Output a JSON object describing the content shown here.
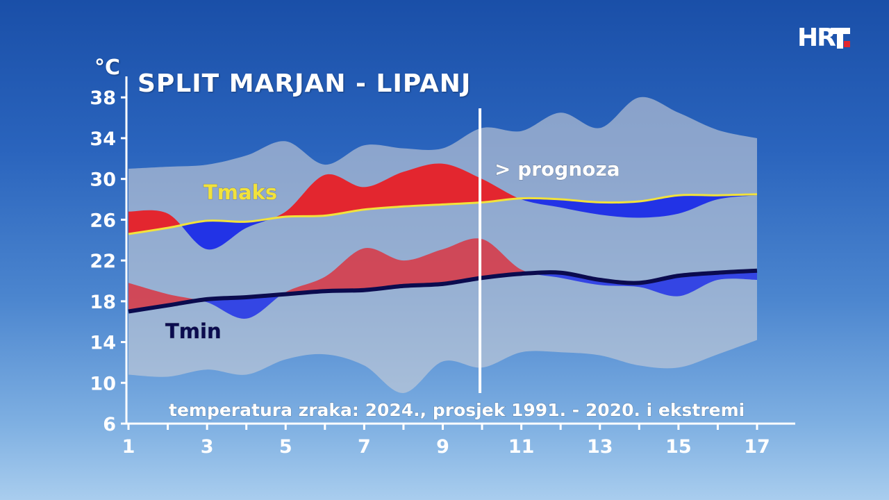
{
  "header": {
    "title": "SPLIT MARJAN - LIPANJ",
    "unit": "°C",
    "logo": "HRT",
    "logo_colors": [
      "#ffffff",
      "#e3262f"
    ]
  },
  "chart_data": {
    "type": "area",
    "title": "SPLIT MARJAN - LIPANJ",
    "ylabel": "°C",
    "xlabel": "",
    "caption": "temperatura zraka: 2024., prosjek 1991. - 2020. i ekstremi",
    "forecast_label": "> prognoza",
    "forecast_start_day": 10,
    "x": [
      1,
      2,
      3,
      4,
      5,
      6,
      7,
      8,
      9,
      10,
      11,
      12,
      13,
      14,
      15,
      16,
      17
    ],
    "x_ticks": [
      1,
      3,
      5,
      7,
      9,
      11,
      13,
      15,
      17
    ],
    "y_ticks": [
      6,
      10,
      14,
      18,
      22,
      26,
      30,
      34,
      38
    ],
    "xlim": [
      1,
      17
    ],
    "ylim": [
      6,
      40
    ],
    "grid": false,
    "extremes_band": {
      "max": [
        31,
        31.2,
        31.4,
        32.3,
        33.7,
        31.4,
        33.3,
        33,
        33,
        35,
        34.7,
        36.5,
        35,
        38,
        36.5,
        34.8,
        34
      ],
      "min": [
        10.8,
        10.6,
        11.3,
        10.8,
        12.3,
        12.8,
        11.7,
        9,
        12.1,
        11.5,
        13,
        13,
        12.7,
        11.7,
        11.5,
        12.8,
        14.2
      ]
    },
    "series": [
      {
        "name": "Tmaks",
        "role": "average_max",
        "color": "#f2e23b",
        "values": [
          24.6,
          25.2,
          25.9,
          25.8,
          26.3,
          26.4,
          27,
          27.3,
          27.5,
          27.7,
          28.1,
          28,
          27.7,
          27.8,
          28.4,
          28.4,
          28.5
        ]
      },
      {
        "role": "measured_max",
        "values": [
          26.8,
          26.6,
          23.1,
          25.2,
          26.8,
          30.4,
          29.2,
          30.7,
          31.5,
          30,
          28,
          27.2,
          26.5,
          26.2,
          26.6,
          28,
          28.4
        ]
      },
      {
        "name": "Tmin",
        "role": "average_min",
        "color": "#0b0b4e",
        "values": [
          17,
          17.6,
          18.2,
          18.4,
          18.7,
          19,
          19.1,
          19.5,
          19.7,
          20.3,
          20.7,
          20.8,
          20.1,
          19.8,
          20.5,
          20.8,
          21
        ]
      },
      {
        "role": "measured_min",
        "values": [
          19.8,
          18.7,
          17.9,
          16.3,
          18.9,
          20.4,
          23.2,
          22,
          23.1,
          24.1,
          21.1,
          20.3,
          19.6,
          19.4,
          18.5,
          20.1,
          20.1
        ]
      }
    ],
    "colors": {
      "band": "#c8cdd6",
      "above_average": "#e3262f",
      "below_average": "#2233e6",
      "axis": "#ffffff",
      "forecast_line": "#ffffff"
    }
  }
}
